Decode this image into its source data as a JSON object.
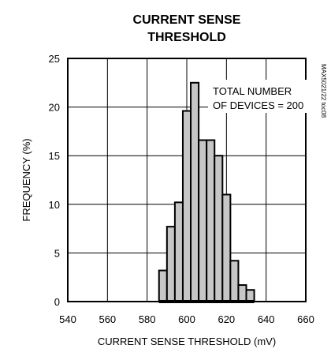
{
  "chart_data": {
    "type": "bar",
    "title_lines": [
      "CURRENT SENSE",
      "THRESHOLD"
    ],
    "xlabel": "CURRENT SENSE THRESHOLD (mV)",
    "ylabel": "FREQUENCY (%)",
    "xlim": [
      540,
      660
    ],
    "ylim": [
      0,
      25
    ],
    "xticks": [
      540,
      560,
      580,
      600,
      620,
      640,
      660
    ],
    "yticks": [
      0,
      5,
      10,
      15,
      20,
      25
    ],
    "grid": true,
    "bin_width": 4,
    "bins": [
      {
        "x0": 586,
        "value": 3.2
      },
      {
        "x0": 590,
        "value": 7.7
      },
      {
        "x0": 594,
        "value": 10.2
      },
      {
        "x0": 598,
        "value": 19.6
      },
      {
        "x0": 602,
        "value": 22.5
      },
      {
        "x0": 606,
        "value": 16.6
      },
      {
        "x0": 610,
        "value": 16.6
      },
      {
        "x0": 614,
        "value": 15.0
      },
      {
        "x0": 618,
        "value": 11.0
      },
      {
        "x0": 622,
        "value": 4.2
      },
      {
        "x0": 626,
        "value": 1.7
      },
      {
        "x0": 630,
        "value": 1.2
      }
    ],
    "annotation_lines": [
      "TOTAL NUMBER",
      "OF DEVICES = 200"
    ],
    "side_label": "MAX5021/22 toc08",
    "colors": {
      "bar_fill": "#c6c6c6",
      "stroke": "#000000",
      "background": "#ffffff"
    }
  }
}
